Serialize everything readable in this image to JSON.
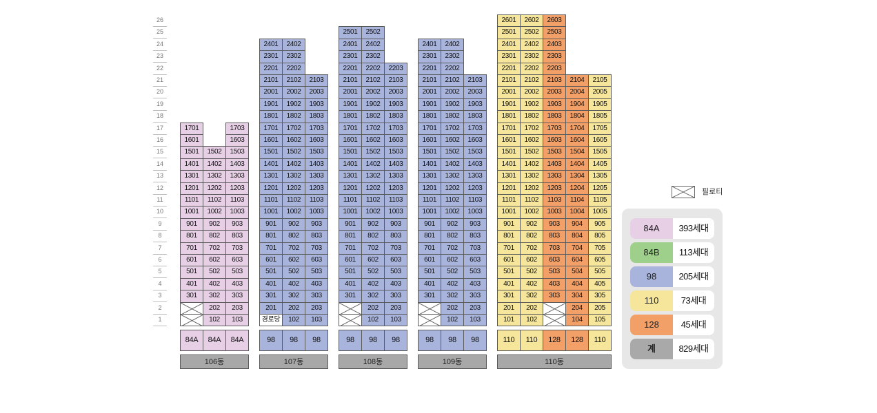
{
  "colors": {
    "84A": "#e7cfe6",
    "84B": "#9fd08b",
    "98": "#a8b4dc",
    "110": "#f5e69b",
    "128": "#f2a068",
    "total": "#a9a9a9",
    "pilotis": "#ffffff",
    "community": "#ffffff"
  },
  "floors": [
    "26",
    "25",
    "24",
    "23",
    "22",
    "21",
    "20",
    "19",
    "18",
    "17",
    "16",
    "15",
    "14",
    "13",
    "12",
    "11",
    "10",
    "9",
    "8",
    "7",
    "6",
    "5",
    "4",
    "3",
    "2",
    "1"
  ],
  "buildings": [
    {
      "name": "106동",
      "types": [
        "84A",
        "84A",
        "84A"
      ],
      "lines": [
        {
          "type": "84A",
          "top": 17,
          "special": [
            {
              "floor": 1,
              "kind": "pilotis"
            },
            {
              "floor": 2,
              "kind": "pilotis"
            }
          ]
        },
        {
          "type": "84A",
          "top": 15
        },
        {
          "type": "84A",
          "top": 17
        }
      ]
    },
    {
      "name": "107동",
      "types": [
        "98",
        "98",
        "98"
      ],
      "lines": [
        {
          "type": "98",
          "top": 24,
          "special": [
            {
              "floor": 1,
              "kind": "community",
              "label": "경로당"
            }
          ]
        },
        {
          "type": "98",
          "top": 24
        },
        {
          "type": "98",
          "top": 21
        }
      ]
    },
    {
      "name": "108동",
      "types": [
        "98",
        "98",
        "98"
      ],
      "lines": [
        {
          "type": "98",
          "top": 25,
          "special": [
            {
              "floor": 1,
              "kind": "pilotis"
            },
            {
              "floor": 2,
              "kind": "pilotis"
            }
          ]
        },
        {
          "type": "98",
          "top": 25
        },
        {
          "type": "98",
          "top": 22
        }
      ]
    },
    {
      "name": "109동",
      "types": [
        "98",
        "98",
        "98"
      ],
      "lines": [
        {
          "type": "98",
          "top": 24,
          "special": [
            {
              "floor": 1,
              "kind": "pilotis"
            },
            {
              "floor": 2,
              "kind": "pilotis"
            }
          ]
        },
        {
          "type": "98",
          "top": 24
        },
        {
          "type": "98",
          "top": 21
        }
      ]
    },
    {
      "name": "110동",
      "types": [
        "110",
        "110",
        "128",
        "128",
        "110"
      ],
      "lines": [
        {
          "type": "110",
          "top": 26
        },
        {
          "type": "110",
          "top": 26
        },
        {
          "type": "128",
          "top": 26,
          "special": [
            {
              "floor": 1,
              "kind": "pilotis"
            },
            {
              "floor": 2,
              "kind": "pilotis"
            }
          ]
        },
        {
          "type": "128",
          "top": 21
        },
        {
          "type": "110",
          "top": 21
        }
      ]
    }
  ],
  "legend": {
    "pilotis_label": "필로티",
    "rows": [
      {
        "key": "84A",
        "value": "393세대",
        "color_key": "84A"
      },
      {
        "key": "84B",
        "value": "113세대",
        "color_key": "84B"
      },
      {
        "key": "98",
        "value": "205세대",
        "color_key": "98"
      },
      {
        "key": "110",
        "value": "73세대",
        "color_key": "110"
      },
      {
        "key": "128",
        "value": "45세대",
        "color_key": "128"
      },
      {
        "key": "계",
        "value": "829세대",
        "color_key": "total"
      }
    ]
  }
}
